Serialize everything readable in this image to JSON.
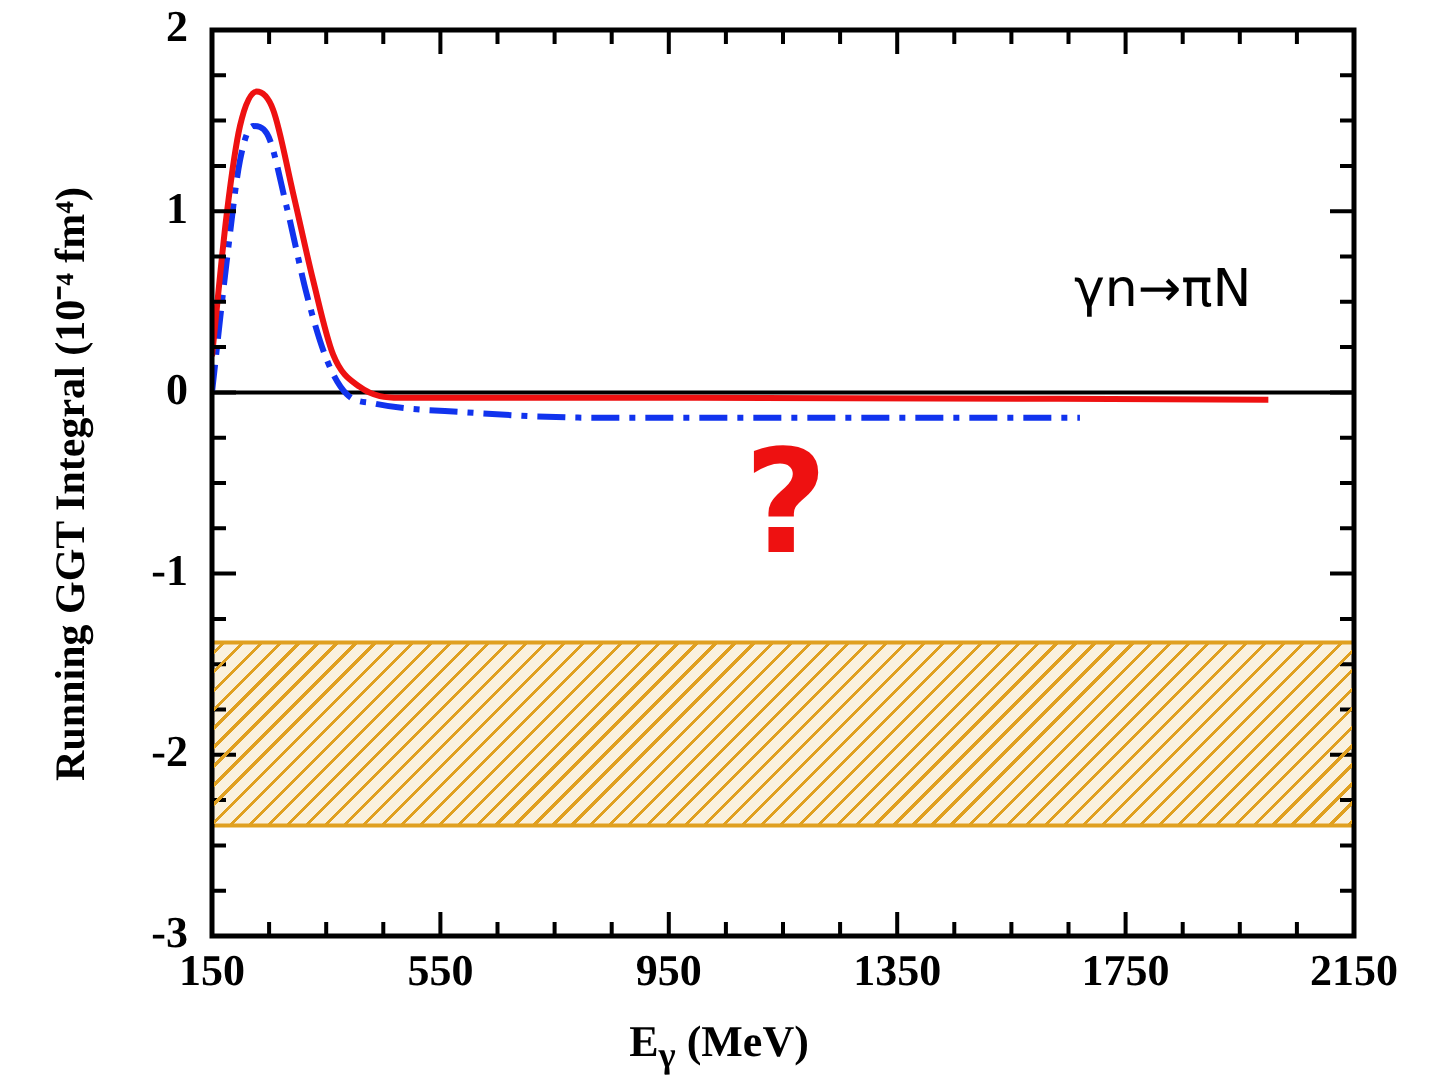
{
  "chart_data": {
    "type": "line",
    "xlabel": "E$_{γ}$ (MeV)",
    "ylabel": "Running GGT Integral (10⁻⁴ fm⁴)",
    "xlim": [
      150,
      2150
    ],
    "xticks": [
      150,
      {
        "value": 250,
        "label": null
      },
      {
        "value": 350,
        "label": null
      },
      {
        "value": 450,
        "label": null
      },
      550,
      {
        "value": 650,
        "label": null
      },
      {
        "value": 750,
        "label": null
      },
      {
        "value": 850,
        "label": null
      },
      950,
      {
        "value": 1050,
        "label": null
      },
      {
        "value": 1150,
        "label": null
      },
      {
        "value": 1250,
        "label": null
      },
      1350,
      {
        "value": 1450,
        "label": null
      },
      {
        "value": 1550,
        "label": null
      },
      {
        "value": 1650,
        "label": null
      },
      1750,
      {
        "value": 1850,
        "label": null
      },
      {
        "value": 1950,
        "label": null
      },
      {
        "value": 2050,
        "label": null
      },
      2150
    ],
    "ylim": [
      -3,
      2
    ],
    "yticks": [
      -3,
      {
        "value": -2.75,
        "label": null
      },
      {
        "value": -2.5,
        "label": null
      },
      {
        "value": -2.25,
        "label": null
      },
      -2,
      {
        "value": -1.75,
        "label": null
      },
      {
        "value": -1.5,
        "label": null
      },
      {
        "value": -1.25,
        "label": null
      },
      -1,
      {
        "value": -0.75,
        "label": null
      },
      {
        "value": -0.5,
        "label": null
      },
      {
        "value": -0.25,
        "label": null
      },
      0,
      {
        "value": 0.25,
        "label": null
      },
      {
        "value": 0.5,
        "label": null
      },
      {
        "value": 0.75,
        "label": null
      },
      1,
      {
        "value": 1.25,
        "label": null
      },
      {
        "value": 1.5,
        "label": null
      },
      {
        "value": 1.75,
        "label": null
      },
      2
    ],
    "series": [
      {
        "color": "#ee1111",
        "line_style": "solid",
        "x": [
          150,
          176,
          199,
          228,
          257,
          292,
          327,
          362,
          409,
          479,
          1000,
          2000
        ],
        "values": [
          0.2,
          0.99,
          1.47,
          1.66,
          1.56,
          1.1,
          0.62,
          0.21,
          0.03,
          -0.03,
          -0.03,
          -0.04
        ]
      },
      {
        "color": "#1133ee",
        "line_style": "dashed",
        "x": [
          150,
          176,
          199,
          222,
          246,
          281,
          316,
          351,
          386,
          432,
          595,
          829,
          1670
        ],
        "values": [
          0,
          0.73,
          1.28,
          1.47,
          1.43,
          1.02,
          0.54,
          0.18,
          -0.01,
          -0.06,
          -0.11,
          -0.14,
          -0.14
        ]
      }
    ],
    "ref_lines": [
      {
        "axis": "y",
        "value": 0,
        "color": "#000000"
      }
    ],
    "bands": [
      {
        "axis": "y",
        "from": -1.38,
        "to": -2.39,
        "color": "#e0a020"
      }
    ],
    "annotations": [
      "γn→πN",
      "?"
    ],
    "marker": "none",
    "grid": false,
    "legend": false
  }
}
